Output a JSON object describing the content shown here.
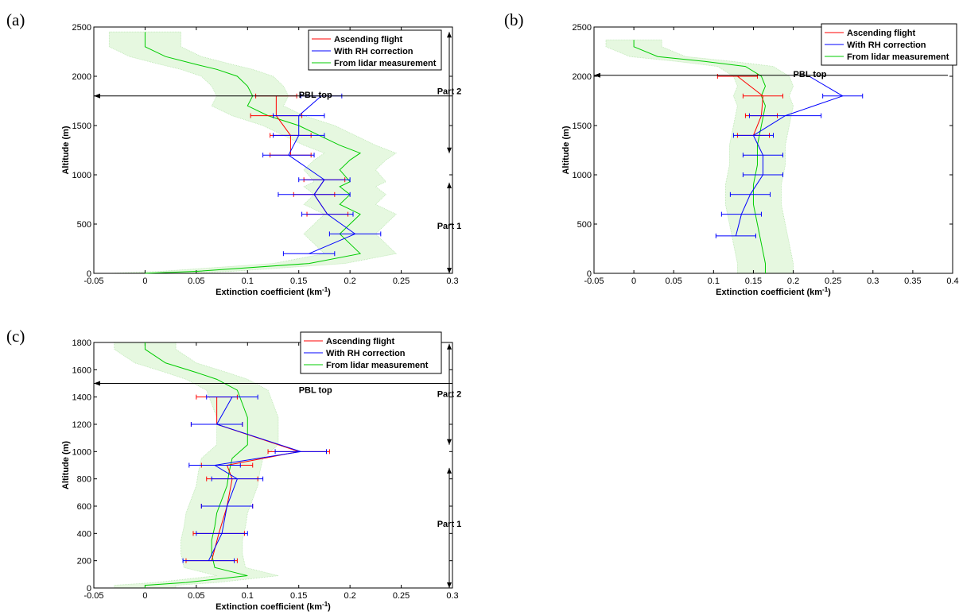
{
  "chart_data": [
    {
      "type": "line",
      "panel_label": "(a)",
      "xlabel_main": "Extinction coefficient (km",
      "xlabel_sup": "-1",
      "xlabel_end": ")",
      "ylabel": "Altitude (m)",
      "xlim": [
        -0.05,
        0.3
      ],
      "ylim": [
        0,
        2500
      ],
      "xticks": [
        "-0.05",
        "0",
        "0.05",
        "0.1",
        "0.15",
        "0.2",
        "0.25",
        "0.3"
      ],
      "xtick_values": [
        -0.05,
        0,
        0.05,
        0.1,
        0.15,
        0.2,
        0.25,
        0.3
      ],
      "yticks": [
        "0",
        "500",
        "1000",
        "1500",
        "2000",
        "2500"
      ],
      "ytick_values": [
        0,
        500,
        1000,
        1500,
        2000,
        2500
      ],
      "legend": {
        "placement": "top-right",
        "entries": [
          {
            "name": "Ascending flight",
            "color": "#ff0000"
          },
          {
            "name": "With RH correction",
            "color": "#0000ff"
          },
          {
            "name": "From lidar measurement",
            "color": "#00cc00"
          }
        ]
      },
      "pbl_top": {
        "label": "PBL top",
        "altitude": 1800
      },
      "parts": [
        {
          "label": "Part 2",
          "y_start": 2450,
          "y_end": 1220,
          "label_y": 1820
        },
        {
          "label": "Part 1",
          "y_start": 920,
          "y_end": 0,
          "label_y": 450
        }
      ],
      "lidar": {
        "name": "From lidar measurement",
        "points": [
          [
            0,
            2450
          ],
          [
            0,
            2300
          ],
          [
            0.02,
            2200
          ],
          [
            0.05,
            2120
          ],
          [
            0.07,
            2070
          ],
          [
            0.09,
            2000
          ],
          [
            0.1,
            1900
          ],
          [
            0.105,
            1800
          ],
          [
            0.1,
            1700
          ],
          [
            0.12,
            1600
          ],
          [
            0.15,
            1500
          ],
          [
            0.17,
            1400
          ],
          [
            0.19,
            1300
          ],
          [
            0.21,
            1220
          ],
          [
            0.2,
            1150
          ],
          [
            0.19,
            1050
          ],
          [
            0.2,
            930
          ],
          [
            0.19,
            880
          ],
          [
            0.2,
            800
          ],
          [
            0.19,
            700
          ],
          [
            0.21,
            600
          ],
          [
            0.2,
            500
          ],
          [
            0.19,
            400
          ],
          [
            0.2,
            300
          ],
          [
            0.21,
            200
          ],
          [
            0.16,
            100
          ],
          [
            0.05,
            20
          ],
          [
            0,
            0
          ]
        ],
        "band_half_width": 0.035
      },
      "ascending": {
        "name": "Ascending flight",
        "points": [
          [
            0.128,
            1800
          ],
          [
            0.128,
            1600
          ],
          [
            0.142,
            1400
          ],
          [
            0.142,
            1200
          ]
        ],
        "errors": [
          0.02,
          0.025,
          0.02,
          0.02
        ]
      },
      "rh_corrected": {
        "name": "With RH correction",
        "points": [
          [
            0.172,
            1800
          ],
          [
            0.15,
            1600
          ],
          [
            0.15,
            1400
          ],
          [
            0.14,
            1200
          ],
          [
            0.175,
            950
          ],
          [
            0.165,
            800
          ],
          [
            0.178,
            600
          ],
          [
            0.205,
            400
          ],
          [
            0.16,
            200
          ]
        ],
        "errors": [
          0.02,
          0.025,
          0.025,
          0.025,
          0.025,
          0.035,
          0.025,
          0.025,
          0.025
        ]
      },
      "ascending_low": {
        "points": [
          [
            0.175,
            950
          ],
          [
            0.165,
            800
          ],
          [
            0.178,
            600
          ]
        ],
        "errors": [
          0.02,
          0.02,
          0.02
        ]
      }
    },
    {
      "type": "line",
      "panel_label": "(b)",
      "xlabel_main": "Extinction coefficient (km",
      "xlabel_sup": "-1",
      "xlabel_end": ")",
      "ylabel": "Altitude (m)",
      "xlim": [
        -0.05,
        0.4
      ],
      "ylim": [
        0,
        2500
      ],
      "xticks": [
        "-0.05",
        "0",
        "0.05",
        "0.1",
        "0.15",
        "0.2",
        "0.25",
        "0.3",
        "0.35",
        "0.4"
      ],
      "xtick_values": [
        -0.05,
        0,
        0.05,
        0.1,
        0.15,
        0.2,
        0.25,
        0.3,
        0.35,
        0.4
      ],
      "yticks": [
        "0",
        "500",
        "1000",
        "1500",
        "2000",
        "2500"
      ],
      "ytick_values": [
        0,
        500,
        1000,
        1500,
        2000,
        2500
      ],
      "legend": {
        "placement": "top-right",
        "entries": [
          {
            "name": "Ascending flight",
            "color": "#ff0000"
          },
          {
            "name": "With RH correction",
            "color": "#0000ff"
          },
          {
            "name": "From lidar measurement",
            "color": "#00cc00"
          }
        ]
      },
      "pbl_top": {
        "label": "PBL top",
        "altitude": 2010
      },
      "lidar": {
        "name": "From lidar measurement",
        "points": [
          [
            0,
            2370
          ],
          [
            0,
            2300
          ],
          [
            0.03,
            2200
          ],
          [
            0.09,
            2150
          ],
          [
            0.14,
            2100
          ],
          [
            0.16,
            2000
          ],
          [
            0.165,
            1900
          ],
          [
            0.16,
            1800
          ],
          [
            0.165,
            1700
          ],
          [
            0.16,
            1500
          ],
          [
            0.155,
            1300
          ],
          [
            0.155,
            1100
          ],
          [
            0.15,
            900
          ],
          [
            0.15,
            700
          ],
          [
            0.155,
            500
          ],
          [
            0.16,
            300
          ],
          [
            0.165,
            100
          ],
          [
            0.165,
            0
          ]
        ],
        "band_half_width": 0.035
      },
      "ascending": {
        "name": "Ascending flight",
        "points": [
          [
            0.13,
            2000
          ],
          [
            0.162,
            1800
          ],
          [
            0.16,
            1600
          ],
          [
            0.15,
            1400
          ]
        ],
        "errors": [
          0.025,
          0.025,
          0.02,
          0.02
        ]
      },
      "rh_corrected": {
        "name": "With RH correction",
        "points": [
          [
            0.22,
            2000
          ],
          [
            0.262,
            1800
          ],
          [
            0.19,
            1600
          ],
          [
            0.15,
            1400
          ],
          [
            0.162,
            1200
          ],
          [
            0.162,
            1000
          ],
          [
            0.146,
            800
          ],
          [
            0.135,
            600
          ],
          [
            0.128,
            380
          ]
        ],
        "errors": [
          0.0,
          0.025,
          0.045,
          0.025,
          0.025,
          0.025,
          0.025,
          0.025,
          0.025
        ]
      }
    },
    {
      "type": "line",
      "panel_label": "(c)",
      "xlabel_main": "Extinction coefficient (km",
      "xlabel_sup": "-1",
      "xlabel_end": ")",
      "ylabel": "Altitude (m)",
      "xlim": [
        -0.05,
        0.3
      ],
      "ylim": [
        0,
        1800
      ],
      "xticks": [
        "-0.05",
        "0",
        "0.05",
        "0.1",
        "0.15",
        "0.2",
        "0.25",
        "0.3"
      ],
      "xtick_values": [
        -0.05,
        0,
        0.05,
        0.1,
        0.15,
        0.2,
        0.25,
        0.3
      ],
      "yticks": [
        "0",
        "200",
        "400",
        "600",
        "800",
        "1000",
        "1200",
        "1400",
        "1600",
        "1800"
      ],
      "ytick_values": [
        0,
        200,
        400,
        600,
        800,
        1000,
        1200,
        1400,
        1600,
        1800
      ],
      "legend": {
        "placement": "top-right",
        "entries": [
          {
            "name": "Ascending flight",
            "color": "#ff0000"
          },
          {
            "name": "With RH correction",
            "color": "#0000ff"
          },
          {
            "name": "From lidar measurement",
            "color": "#00cc00"
          }
        ]
      },
      "pbl_top": {
        "label": "PBL top",
        "altitude": 1500
      },
      "parts": [
        {
          "label": "Part 2",
          "y_start": 1790,
          "y_end": 1050,
          "label_y": 1400
        },
        {
          "label": "Part 1",
          "y_start": 880,
          "y_end": 0,
          "label_y": 450
        }
      ],
      "lidar": {
        "name": "From lidar measurement",
        "points": [
          [
            0,
            1800
          ],
          [
            0,
            1750
          ],
          [
            0.02,
            1650
          ],
          [
            0.05,
            1580
          ],
          [
            0.07,
            1530
          ],
          [
            0.09,
            1450
          ],
          [
            0.095,
            1350
          ],
          [
            0.1,
            1250
          ],
          [
            0.1,
            1150
          ],
          [
            0.1,
            1050
          ],
          [
            0.085,
            950
          ],
          [
            0.082,
            850
          ],
          [
            0.08,
            750
          ],
          [
            0.075,
            650
          ],
          [
            0.07,
            550
          ],
          [
            0.068,
            450
          ],
          [
            0.065,
            350
          ],
          [
            0.065,
            250
          ],
          [
            0.068,
            150
          ],
          [
            0.1,
            90
          ],
          [
            0.04,
            40
          ],
          [
            0,
            20
          ],
          [
            0,
            0
          ]
        ],
        "band_half_width": 0.03
      },
      "ascending": {
        "name": "Ascending flight",
        "points": [
          [
            0.07,
            1400
          ],
          [
            0.07,
            1200
          ],
          [
            0.15,
            1000
          ],
          [
            0.08,
            900
          ],
          [
            0.085,
            800
          ],
          [
            0.08,
            600
          ],
          [
            0.072,
            400
          ],
          [
            0.065,
            200
          ]
        ],
        "errors": [
          0.02,
          0.025,
          0.03,
          0.025,
          0.025,
          0.025,
          0.025,
          0.025
        ]
      },
      "rh_corrected": {
        "name": "With RH correction",
        "points": [
          [
            0.085,
            1400
          ],
          [
            0.07,
            1200
          ],
          [
            0.152,
            1000
          ],
          [
            0.068,
            900
          ],
          [
            0.09,
            800
          ],
          [
            0.08,
            600
          ],
          [
            0.075,
            400
          ],
          [
            0.062,
            200
          ]
        ],
        "errors": [
          0.025,
          0.025,
          0.025,
          0.025,
          0.025,
          0.025,
          0.025,
          0.025
        ]
      }
    }
  ]
}
